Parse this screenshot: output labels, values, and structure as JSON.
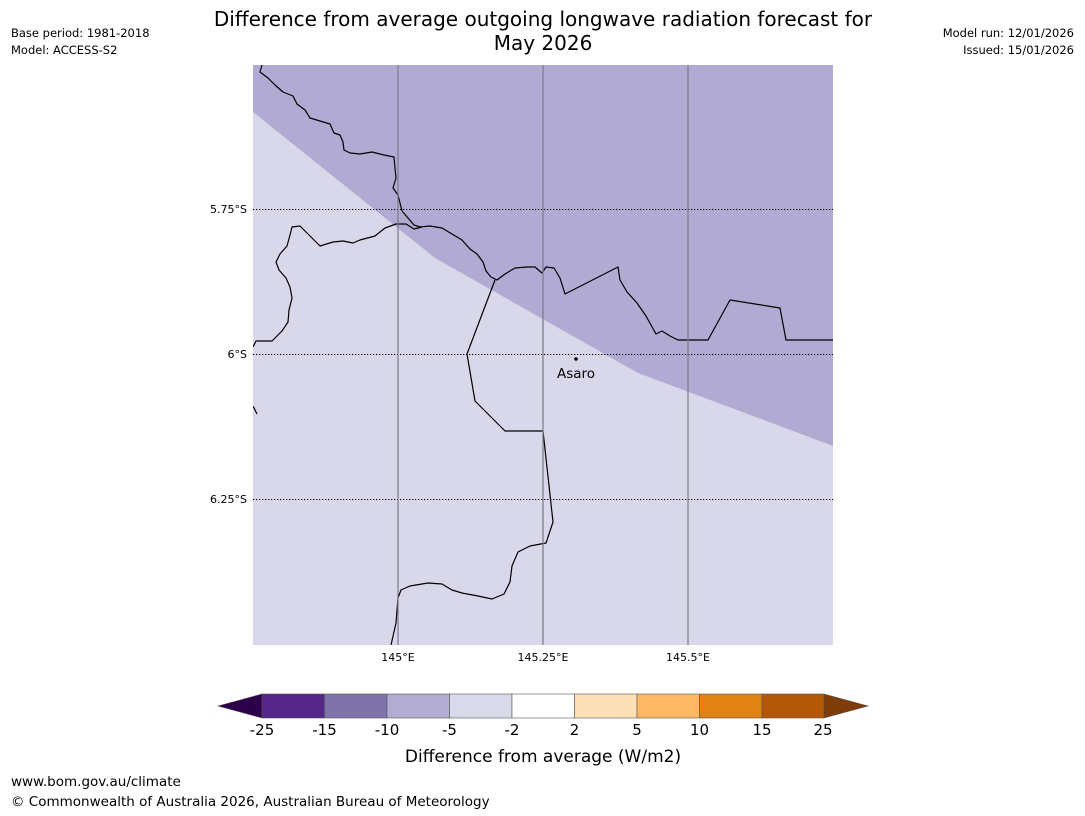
{
  "header": {
    "title_line1": "Difference from average outgoing longwave radiation forecast for",
    "title_line2": "May 2026",
    "base_period": "Base period: 1981-2018",
    "model": "Model: ACCESS-S2",
    "model_run": "Model run: 12/01/2026",
    "issued": "Issued: 15/01/2026"
  },
  "map": {
    "lat_labels": [
      "5.75°S",
      "6°S",
      "6.25°S"
    ],
    "lon_labels": [
      "145°E",
      "145.25°E",
      "145.5°E"
    ],
    "places": [
      {
        "name": "Asaro"
      }
    ],
    "region_colors": {
      "lower": "#d8d8ea",
      "upper": "#b1abd3"
    },
    "region_categories": {
      "lower": "-5 to -2",
      "upper": "-10 to -5"
    }
  },
  "legend": {
    "title": "Difference from average (W/m2)",
    "tick_labels": [
      "-25",
      "-15",
      "-10",
      "-5",
      "-2",
      "2",
      "5",
      "10",
      "15",
      "25"
    ],
    "colors": [
      "#2d004b",
      "#542788",
      "#8073ac",
      "#b2abd2",
      "#d8daeb",
      "#ffffff",
      "#fee0b6",
      "#fdb863",
      "#e08214",
      "#b35806",
      "#7f3b08"
    ]
  },
  "footer": {
    "url": "www.bom.gov.au/climate",
    "copyright": "© Commonwealth of Australia 2026, Australian Bureau of Meteorology"
  }
}
